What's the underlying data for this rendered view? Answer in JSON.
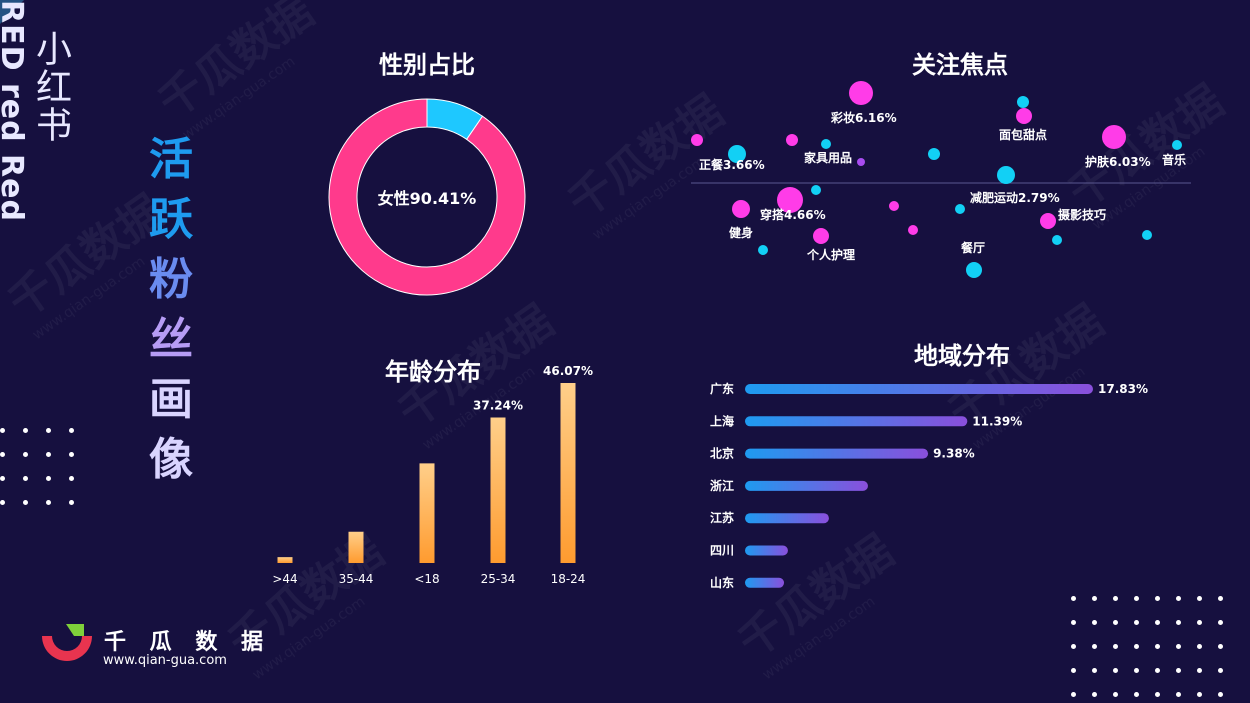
{
  "brand": {
    "cn": "小红书",
    "en": "RED red Red",
    "logo_name": "千 瓜 数 据",
    "url": "www.qian-gua.com",
    "watermark": "千瓜数据",
    "watermark_url": "www.qian-gua.com"
  },
  "page_title_chars": [
    "活",
    "跃",
    "粉",
    "丝",
    "画",
    "像"
  ],
  "colors": {
    "background": "#16103f",
    "female": "#ff3a8c",
    "male": "#1ec8ff",
    "age_bar_top": "#ffcf8a",
    "age_bar_bottom": "#ff9b2f",
    "region_start": "#1e9bf0",
    "region_end": "#8a4fdc",
    "title_blue": "#1e9bf0",
    "title_light": "#d9d4ff"
  },
  "gender": {
    "title": "性别占比",
    "center_label": "女性90.41%",
    "chart_data": {
      "type": "pie",
      "slices": [
        {
          "name": "女性",
          "value": 90.41,
          "color": "#ff3a8c"
        },
        {
          "name": "男性",
          "value": 9.59,
          "color": "#1ec8ff"
        }
      ]
    }
  },
  "age": {
    "title": "年龄分布",
    "chart_data": {
      "type": "bar",
      "categories": [
        ">44",
        "35-44",
        "<18",
        "25-34",
        "18-24"
      ],
      "values": [
        1.5,
        8.0,
        25.5,
        37.24,
        46.07
      ],
      "data_labels": [
        "",
        "",
        "",
        "37.24%",
        "46.07%"
      ],
      "ylim": [
        0,
        46.07
      ]
    }
  },
  "interests": {
    "title": "关注焦点",
    "chart_data": {
      "type": "scatter",
      "labels": [
        "彩妆6.16%",
        "面包甜点",
        "护肤6.03%",
        "音乐",
        "正餐3.66%",
        "家具用品",
        "减肥运动2.79%",
        "穿搭4.66%",
        "摄影技巧",
        "健身",
        "个人护理",
        "餐厅"
      ]
    }
  },
  "region": {
    "title": "地域分布",
    "chart_data": {
      "type": "bar",
      "orientation": "horizontal",
      "categories": [
        "广东",
        "上海",
        "北京",
        "浙江",
        "江苏",
        "四川",
        "山东"
      ],
      "values": [
        17.83,
        11.39,
        9.38,
        6.3,
        4.3,
        2.2,
        2.0
      ],
      "data_labels": [
        "17.83%",
        "11.39%",
        "9.38%",
        "",
        "",
        "",
        ""
      ],
      "xlim": [
        0,
        17.83
      ]
    }
  }
}
